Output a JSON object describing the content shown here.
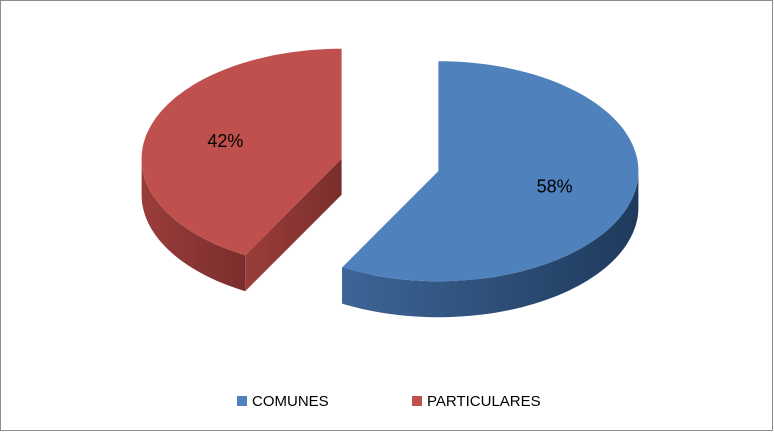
{
  "chart_data": {
    "type": "pie",
    "categories": [
      "COMUNES",
      "PARTICULARES"
    ],
    "values": [
      58,
      42
    ],
    "value_labels": [
      "58%",
      "42%"
    ],
    "colors": [
      "#4f81bd",
      "#c0504d"
    ],
    "legend": "bottom"
  }
}
